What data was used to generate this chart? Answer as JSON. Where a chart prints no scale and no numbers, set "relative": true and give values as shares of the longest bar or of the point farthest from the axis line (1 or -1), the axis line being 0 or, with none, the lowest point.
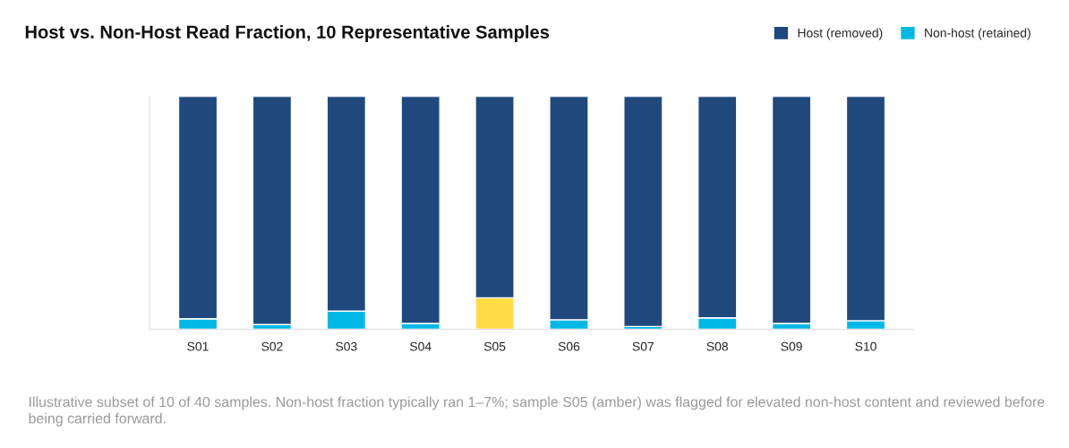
{
  "chart_data": {
    "type": "bar",
    "title": "Host vs. Non-Host Read Fraction, 10 Representative Samples",
    "categories": [
      "S01",
      "S02",
      "S03",
      "S04",
      "S05",
      "S06",
      "S07",
      "S08",
      "S09",
      "S10"
    ],
    "stacked": true,
    "relative": true,
    "legend": "top right",
    "grid": false,
    "series": [
      {
        "name": "Non-host (retained)",
        "color": "#00b8e6",
        "colors": [
          "#00b8e6",
          "#00b8e6",
          "#00b8e6",
          "#00b8e6",
          "#ffdb45",
          "#00b8e6",
          "#00b8e6",
          "#00b8e6",
          "#00b8e6",
          "#00b8e6"
        ],
        "values": [
          0.045,
          0.02,
          0.078,
          0.025,
          0.135,
          0.041,
          0.012,
          0.049,
          0.025,
          0.037
        ]
      },
      {
        "name": "Host (removed)",
        "color": "#1f497d",
        "values": [
          0.955,
          0.98,
          0.922,
          0.975,
          0.865,
          0.959,
          0.988,
          0.951,
          0.975,
          0.963
        ]
      }
    ],
    "annotations": [
      "Illustrative subset of 10 of 40 samples. Non-host fraction typically ran 1–7%; sample S05 (amber) was flagged for elevated non-host content and reviewed before being carried forward."
    ]
  }
}
